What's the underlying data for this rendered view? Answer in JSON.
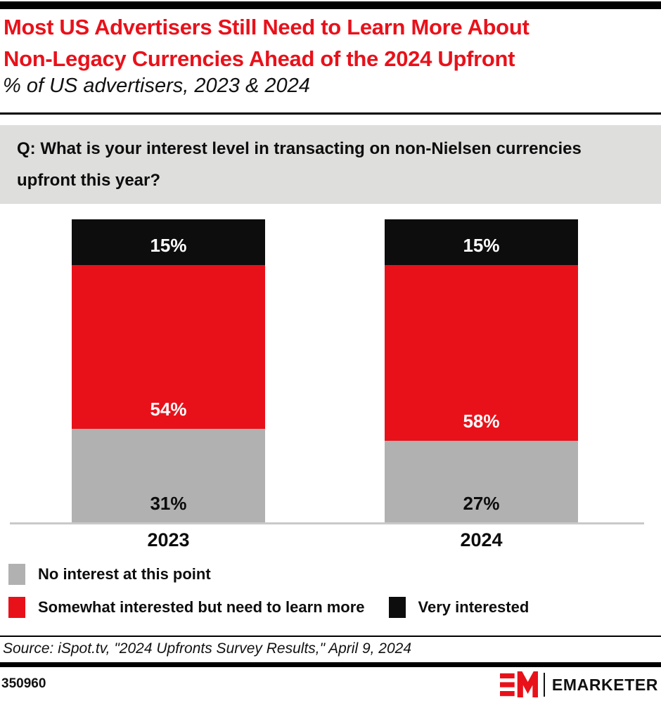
{
  "header": {
    "title_lines": [
      "Most US Advertisers Still Need to Learn More About",
      "Non-Legacy Currencies Ahead of the 2024 Upfront"
    ],
    "subtitle": "% of US advertisers, 2023 & 2024"
  },
  "question": {
    "lines": [
      "Q: What is your interest level in transacting on non-Nielsen currencies",
      "upfront this year?"
    ]
  },
  "chart_data": {
    "type": "bar",
    "subtype": "stacked-100-percent",
    "categories": [
      "2023",
      "2024"
    ],
    "series": [
      {
        "name": "No interest at this point",
        "color": "#b1b1b1",
        "label_color": "#0d0d0d",
        "values": [
          31,
          27
        ]
      },
      {
        "name": "Somewhat interested but need to learn more",
        "color": "#e8111a",
        "label_color": "#ffffff",
        "values": [
          54,
          58
        ]
      },
      {
        "name": "Very interested",
        "color": "#0d0d0d",
        "label_color": "#ffffff",
        "values": [
          15,
          15
        ]
      }
    ],
    "stack_order_top_to_bottom": [
      "Very interested",
      "Somewhat interested but need to learn more",
      "No interest at this point"
    ],
    "value_suffix": "%",
    "ylim": [
      0,
      100
    ],
    "grid": false,
    "legend_position": "bottom-left"
  },
  "source": {
    "text": "Source: iSpot.tv, \"2024 Upfronts Survey Results,\" April 9, 2024"
  },
  "footer": {
    "chart_id": "350960",
    "brand": "EMARKETER"
  },
  "colors": {
    "accent_red": "#e8111a",
    "bar_gray": "#b1b1b1",
    "bar_black": "#0d0d0d",
    "question_bg": "#dededd",
    "axis_line": "#c9c9c9",
    "top_bar": "#000000"
  }
}
